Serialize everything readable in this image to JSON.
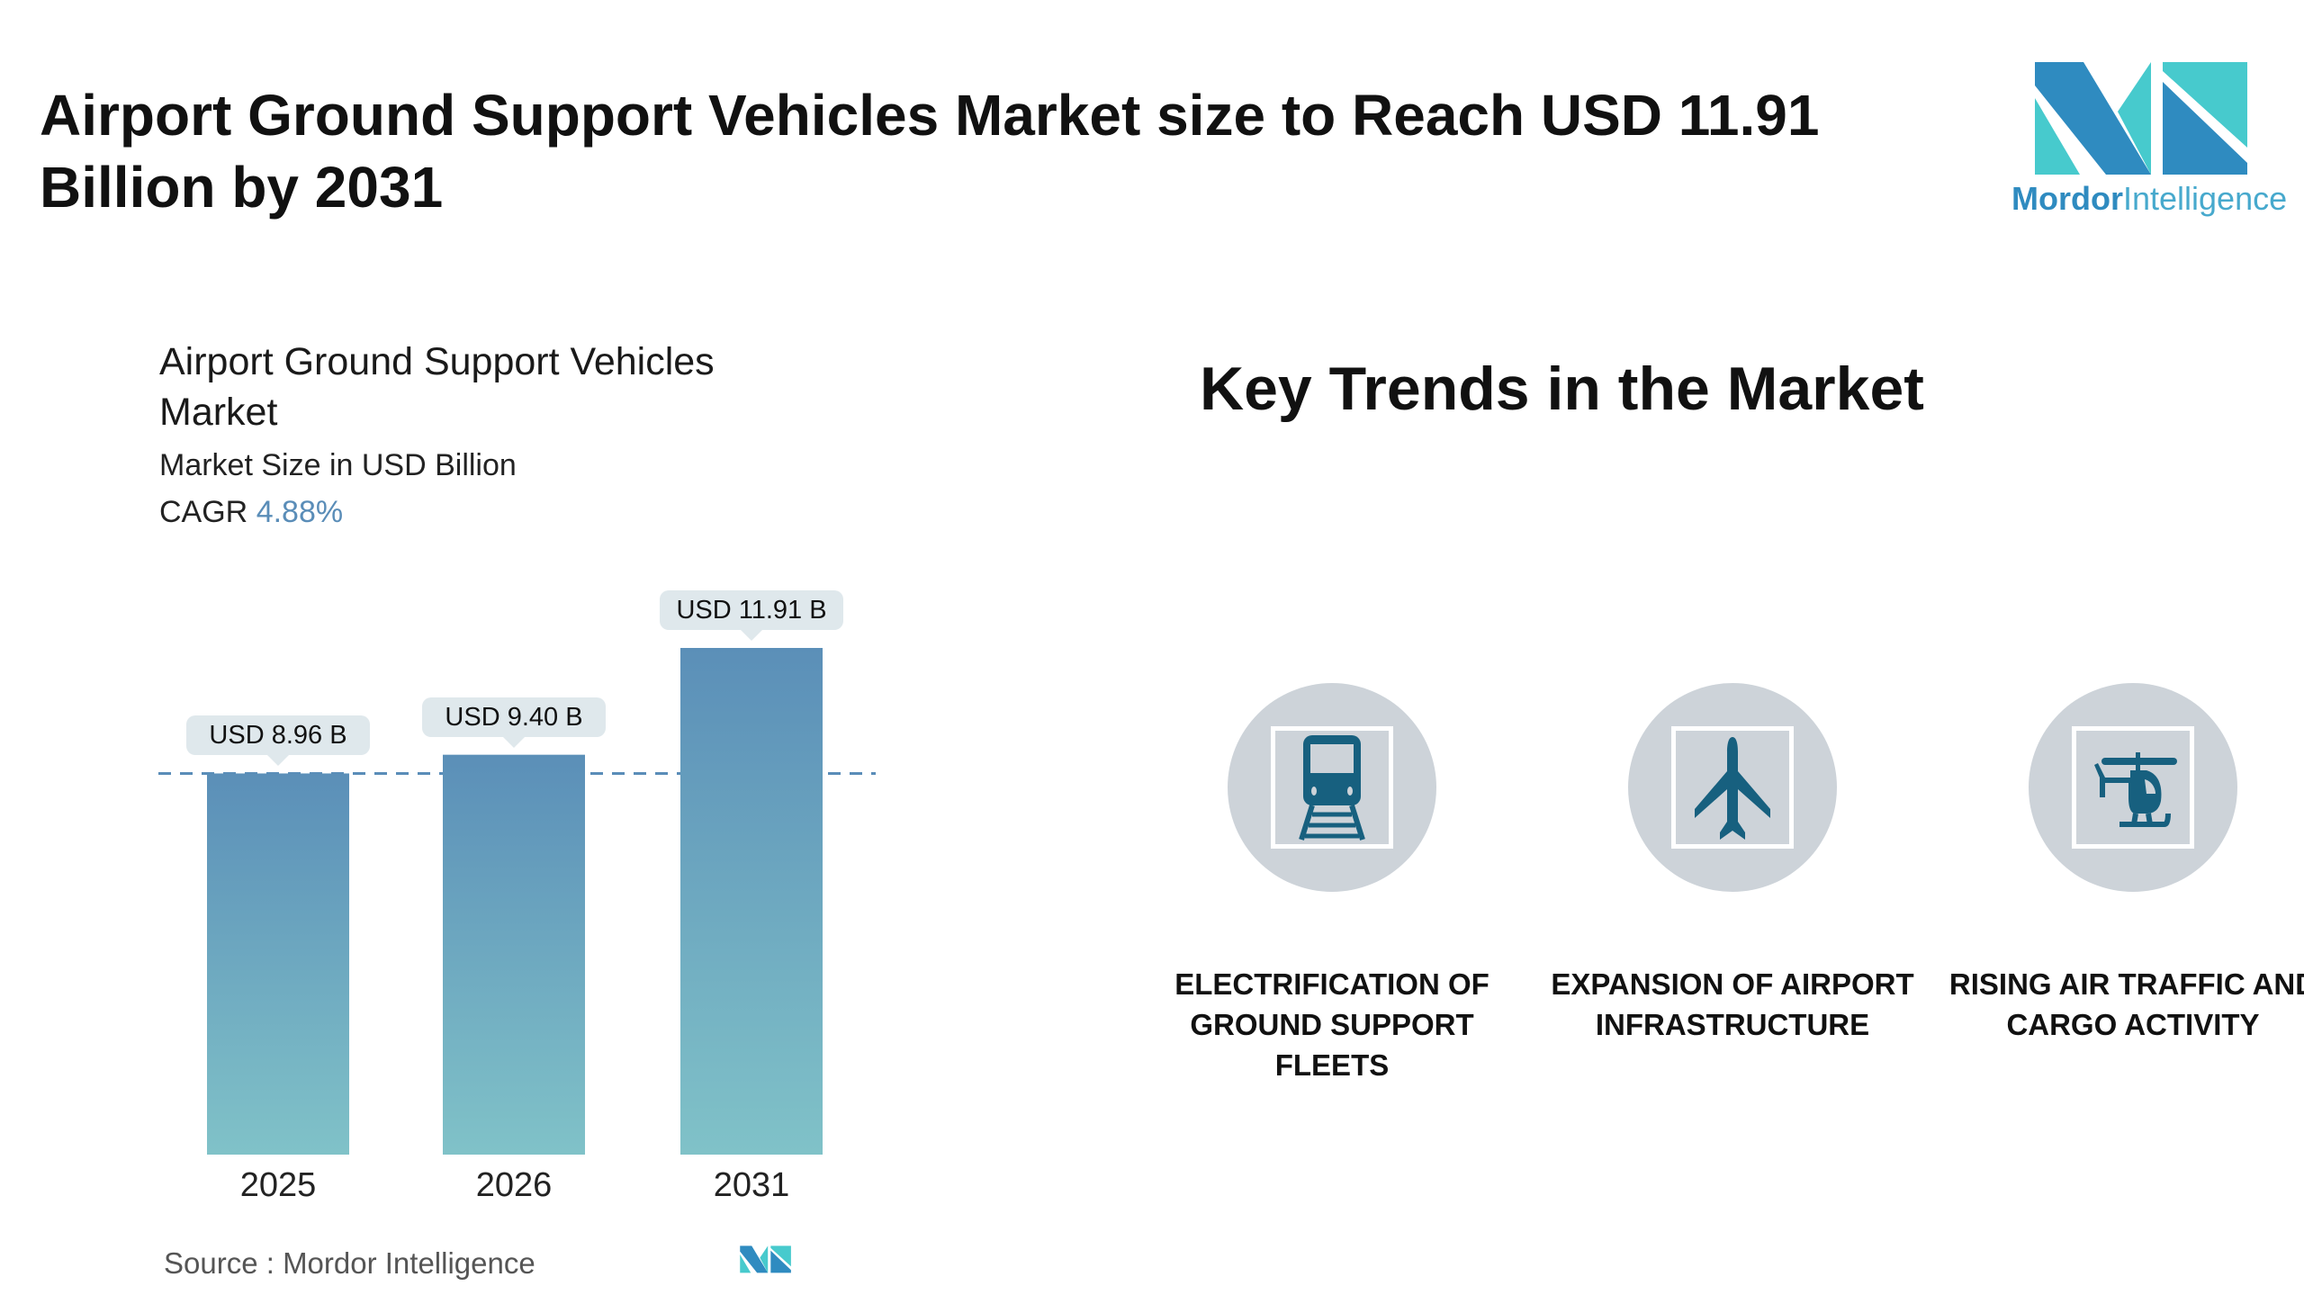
{
  "header": {
    "title": "Airport Ground Support Vehicles Market size to Reach USD 11.91 Billion by 2031",
    "logo_text_bold": "Mordor",
    "logo_text_light": "Intelligence"
  },
  "colors": {
    "bar_top": "#5b8fb8",
    "bar_bottom": "#80c2c8",
    "logo_dark": "#2f8bc0",
    "logo_light": "#47cacd",
    "icon": "#17607f",
    "circle": "#cdd3d9"
  },
  "chart_data": {
    "type": "bar",
    "title": "Airport Ground Support Vehicles Market",
    "subtitle": "Market Size in USD Billion",
    "cagr_label": "CAGR",
    "cagr_value": "4.88%",
    "categories": [
      "2025",
      "2026",
      "2031"
    ],
    "values": [
      8.96,
      9.4,
      11.91
    ],
    "data_labels": [
      "USD 8.96 B",
      "USD 9.40 B",
      "USD 11.91 B"
    ],
    "reference_line": 8.96,
    "ylim": [
      0,
      11.91
    ],
    "grid": false,
    "source": "Source :  Mordor Intelligence"
  },
  "trends": {
    "title": "Key Trends in the Market",
    "items": [
      {
        "icon": "train-icon",
        "label": "ELECTRIFICATION OF GROUND SUPPORT FLEETS"
      },
      {
        "icon": "airplane-icon",
        "label": "EXPANSION OF AIRPORT INFRASTRUCTURE"
      },
      {
        "icon": "helicopter-icon",
        "label": "RISING AIR TRAFFIC AND CARGO ACTIVITY"
      }
    ]
  }
}
